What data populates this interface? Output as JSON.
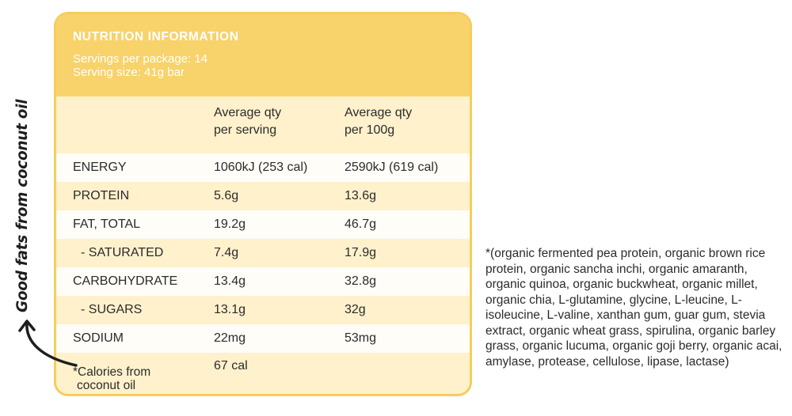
{
  "panel": {
    "title": "NUTRITION INFORMATION",
    "servings_per_package": "Servings per package: 14",
    "serving_size": "Serving size: 41g bar"
  },
  "table": {
    "header": [
      "",
      "Average qty\nper serving",
      "Average qty\nper 100g"
    ],
    "header_col2_line1": "Average qty",
    "header_col2_line2": "per serving",
    "header_col3_line1": "Average qty",
    "header_col3_line2": "per 100g",
    "rows": [
      {
        "label": "ENERGY",
        "per_serving": "1060kJ (253 cal)",
        "per_100g": "2590kJ (619 cal)"
      },
      {
        "label": "PROTEIN",
        "per_serving": "5.6g",
        "per_100g": "13.6g"
      },
      {
        "label": "FAT, TOTAL",
        "per_serving": "19.2g",
        "per_100g": "46.7g"
      },
      {
        "label": "- SATURATED",
        "per_serving": "7.4g",
        "per_100g": "17.9g"
      },
      {
        "label": "CARBOHYDRATE",
        "per_serving": "13.4g",
        "per_100g": "32.8g"
      },
      {
        "label": "- SUGARS",
        "per_serving": "13.1g",
        "per_100g": "32g"
      },
      {
        "label": "SODIUM",
        "per_serving": "22mg",
        "per_100g": "53mg"
      }
    ],
    "footnote_line1": "*Calories from",
    "footnote_line2": "coconut oil",
    "footnote_value": "67 cal"
  },
  "side_note": "Good fats from coconut oil",
  "ingredients_note": "*(organic fermented pea protein, organic brown rice protein, organic sancha inchi, organic amaranth, organic quinoa, organic buckwheat, organic millet, organic chia, L-glutamine, glycine, L-leucine, L-isoleucine, L-valine, xanthan gum, guar gum, stevia extract, organic wheat grass, spirulina, organic barley grass, organic lucuma, organic goji berry, organic acai, amylase, protease, cellulose, lipase, lactase)",
  "colors": {
    "accent": "#f8d26a",
    "row_tint": "#fff1cc",
    "text": "#2b2b2b"
  }
}
